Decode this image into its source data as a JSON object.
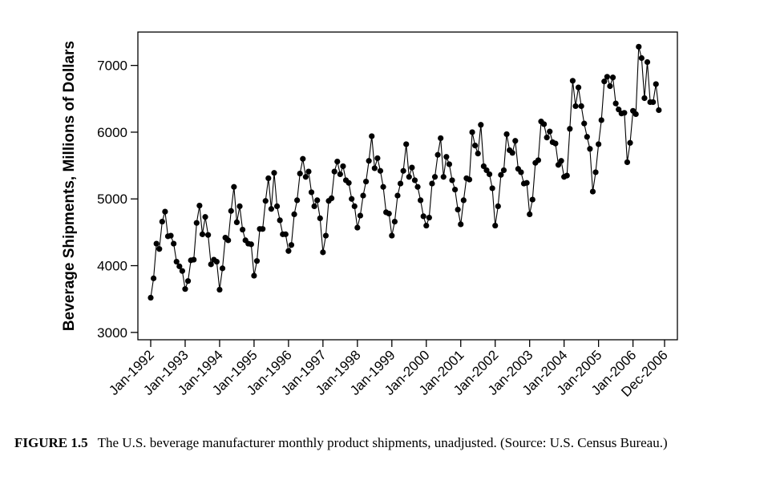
{
  "caption": {
    "label": "FIGURE 1.5",
    "text": "The U.S. beverage manufacturer monthly product shipments, unadjusted. (Source: U.S. Census Bureau.)"
  },
  "chart_data": {
    "type": "line",
    "title": "",
    "xlabel": "",
    "ylabel": "Beverage Shipments, Millions of Dollars",
    "ylim": [
      2890,
      7500
    ],
    "yticks": [
      3000,
      4000,
      5000,
      6000,
      7000
    ],
    "xtick_labels": [
      "Jan-1992",
      "Jan-1993",
      "Jan-1994",
      "Jan-1995",
      "Jan-1996",
      "Jan-1997",
      "Jan-1998",
      "Jan-1999",
      "Jan-2000",
      "Jan-2001",
      "Jan-2002",
      "Jan-2003",
      "Jan-2004",
      "Jan-2005",
      "Jan-2006",
      "Dec-2006"
    ],
    "x_start": "Jan-1992",
    "x_end": "Dec-2006",
    "markers": true,
    "grid": false,
    "series": [
      {
        "values": [
          3520,
          3810,
          4330,
          4250,
          4660,
          4810,
          4440,
          4450,
          4330,
          4060,
          3990,
          3920,
          3650,
          3770,
          4080,
          4090,
          4640,
          4900,
          4470,
          4730,
          4460,
          4020,
          4090,
          4060,
          3640,
          3960,
          4420,
          4380,
          4820,
          5180,
          4650,
          4890,
          4540,
          4380,
          4330,
          4320,
          3850,
          4070,
          4550,
          4550,
          4970,
          5310,
          4850,
          5390,
          4890,
          4680,
          4470,
          4470,
          4220,
          4310,
          4770,
          4980,
          5380,
          5600,
          5330,
          5410,
          5100,
          4890,
          4980,
          4710,
          4200,
          4450,
          4970,
          5010,
          5410,
          5560,
          5370,
          5490,
          5280,
          5240,
          5000,
          4890,
          4570,
          4750,
          5050,
          5260,
          5570,
          5940,
          5460,
          5610,
          5420,
          5180,
          4800,
          4780,
          4450,
          4660,
          5050,
          5230,
          5420,
          5820,
          5330,
          5470,
          5280,
          5180,
          4980,
          4740,
          4600,
          4720,
          5230,
          5330,
          5660,
          5910,
          5330,
          5630,
          5520,
          5280,
          5140,
          4840,
          4620,
          4980,
          5310,
          5290,
          6000,
          5800,
          5680,
          6110,
          5490,
          5430,
          5370,
          5160,
          4600,
          4890,
          5360,
          5430,
          5970,
          5730,
          5690,
          5870,
          5450,
          5400,
          5230,
          5240,
          4770,
          4990,
          5540,
          5580,
          6160,
          6120,
          5920,
          6010,
          5850,
          5830,
          5510,
          5570,
          5330,
          5350,
          6050,
          6770,
          6390,
          6670,
          6390,
          6130,
          5930,
          5750,
          5110,
          5400,
          5820,
          6180,
          6760,
          6830,
          6690,
          6820,
          6430,
          6340,
          6280,
          6290,
          5550,
          5840,
          6320,
          6270,
          7280,
          7110,
          6510,
          7050,
          6450,
          6450,
          6720,
          6330
        ]
      }
    ]
  }
}
